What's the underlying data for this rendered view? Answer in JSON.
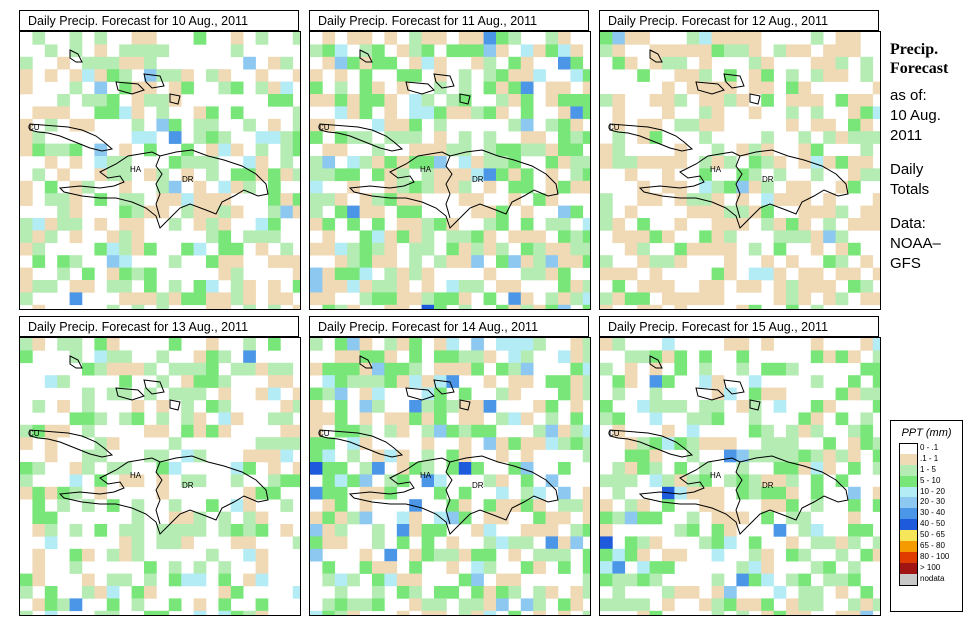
{
  "panels": [
    {
      "title": "Daily Precip. Forecast for  10 Aug., 2011"
    },
    {
      "title": "Daily Precip. Forecast for  11 Aug., 2011"
    },
    {
      "title": "Daily Precip. Forecast for  12 Aug., 2011"
    },
    {
      "title": "Daily Precip. Forecast for  13 Aug., 2011"
    },
    {
      "title": "Daily Precip. Forecast for  14 Aug., 2011"
    },
    {
      "title": "Daily Precip. Forecast for  15 Aug., 2011"
    }
  ],
  "map_labels": {
    "cuba": "CU",
    "haiti": "HA",
    "dominican_republic": "DR"
  },
  "sidebar": {
    "title_line1": "Precip.",
    "title_line2": "Forecast",
    "asof_line1": "as of:",
    "asof_line2": "10 Aug.",
    "asof_line3": "2011",
    "daily_line1": "Daily",
    "daily_line2": "Totals",
    "data_line1": "Data:",
    "data_line2": "NOAA–",
    "data_line3": "GFS"
  },
  "legend": {
    "title": "PPT (mm)",
    "items": [
      {
        "label": "0 - .1",
        "color": "#ffffff"
      },
      {
        "label": ".1 - 1",
        "color": "#f0d9b5"
      },
      {
        "label": "1 - 5",
        "color": "#b4ecb4"
      },
      {
        "label": "5 - 10",
        "color": "#78e678"
      },
      {
        "label": "10 - 20",
        "color": "#b4ecf5"
      },
      {
        "label": "20 - 30",
        "color": "#8cc8f0"
      },
      {
        "label": "30 - 40",
        "color": "#4b96e6"
      },
      {
        "label": "40 - 50",
        "color": "#1e5adc"
      },
      {
        "label": "50 - 65",
        "color": "#f5e65a"
      },
      {
        "label": "65 - 80",
        "color": "#f59b00"
      },
      {
        "label": "80 - 100",
        "color": "#e13c00"
      },
      {
        "label": "> 100",
        "color": "#a01414"
      },
      {
        "label": "nodata",
        "color": "#c8c8c8"
      }
    ]
  }
}
